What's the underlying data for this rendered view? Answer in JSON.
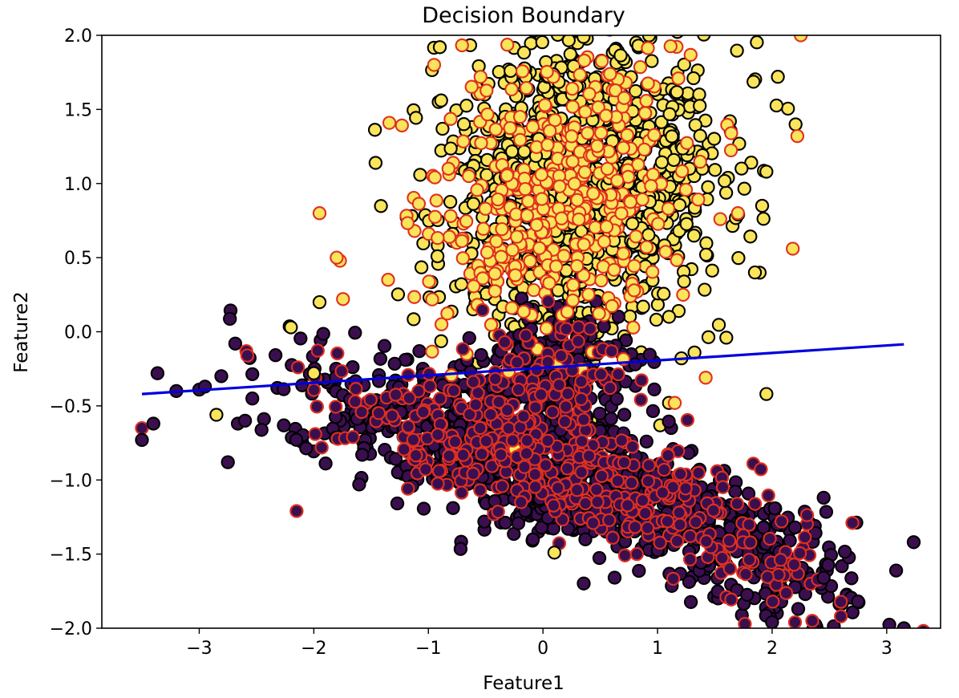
{
  "chart_data": {
    "type": "scatter",
    "title": "Decision Boundary",
    "xlabel": "Feature1",
    "ylabel": "Feature2",
    "xlim": [
      -3.85,
      3.47
    ],
    "ylim": [
      -2.0,
      2.0
    ],
    "x_ticks": [
      -3,
      -2,
      -1,
      0,
      1,
      2,
      3
    ],
    "x_tick_labels": [
      "−3",
      "−2",
      "−1",
      "0",
      "1",
      "2",
      "3"
    ],
    "y_ticks": [
      -2.0,
      -1.5,
      -1.0,
      -0.5,
      0.0,
      0.5,
      1.0,
      1.5,
      2.0
    ],
    "y_tick_labels": [
      "−2.0",
      "−1.5",
      "−1.0",
      "−0.5",
      "0.0",
      "0.5",
      "1.0",
      "1.5",
      "2.0"
    ],
    "grid": false,
    "colors": {
      "class0_fill": "#3b0f4f",
      "class1_fill": "#f9e45b",
      "train_edge": "#000000",
      "test_edge": "#e0301e",
      "boundary": "#0000dd"
    },
    "decision_boundary": {
      "x": [
        -3.5,
        3.15
      ],
      "y": [
        -0.42,
        -0.085
      ]
    },
    "clusters": [
      {
        "name": "class1-train-upper",
        "label": 1,
        "edge": "train",
        "n": 1100,
        "cx": 0.35,
        "cy": 1.05,
        "sx": 0.62,
        "sy": 0.55,
        "rot": 0.45
      },
      {
        "name": "class1-test-upper",
        "label": 1,
        "edge": "test",
        "n": 380,
        "cx": 0.1,
        "cy": 0.95,
        "sx": 0.6,
        "sy": 0.5,
        "rot": 0.4
      },
      {
        "name": "class0-train-lower",
        "label": 0,
        "edge": "train",
        "n": 1000,
        "cx": -0.05,
        "cy": -0.9,
        "sx": 1.05,
        "sy": 0.22,
        "rot": -0.25
      },
      {
        "name": "class0-test-lower",
        "label": 0,
        "edge": "test",
        "n": 340,
        "cx": -0.05,
        "cy": -0.88,
        "sx": 0.95,
        "sy": 0.2,
        "rot": -0.25
      },
      {
        "name": "class0-train-mid",
        "label": 0,
        "edge": "train",
        "n": 200,
        "cx": 0.15,
        "cy": -0.25,
        "sx": 0.35,
        "sy": 0.22,
        "rot": 0.0
      },
      {
        "name": "class0-test-mid",
        "label": 0,
        "edge": "test",
        "n": 80,
        "cx": 0.1,
        "cy": -0.3,
        "sx": 0.32,
        "sy": 0.22,
        "rot": 0.0
      },
      {
        "name": "class0-train-tail",
        "label": 0,
        "edge": "train",
        "n": 140,
        "cx": 1.9,
        "cy": -1.55,
        "sx": 0.38,
        "sy": 0.18,
        "rot": -0.3
      },
      {
        "name": "class0-test-tail",
        "label": 0,
        "edge": "test",
        "n": 45,
        "cx": 1.9,
        "cy": -1.55,
        "sx": 0.35,
        "sy": 0.17,
        "rot": -0.3
      }
    ],
    "fixed_points": [
      {
        "x": -3.5,
        "y": -0.65,
        "label": 0,
        "edge": "test"
      },
      {
        "x": -3.5,
        "y": -0.73,
        "label": 0,
        "edge": "train"
      },
      {
        "x": -3.4,
        "y": -0.62,
        "label": 0,
        "edge": "train"
      },
      {
        "x": -3.2,
        "y": -0.4,
        "label": 0,
        "edge": "train"
      },
      {
        "x": -3.0,
        "y": -0.39,
        "label": 0,
        "edge": "train"
      },
      {
        "x": -2.95,
        "y": -0.37,
        "label": 0,
        "edge": "train"
      },
      {
        "x": -2.15,
        "y": -1.21,
        "label": 0,
        "edge": "test"
      },
      {
        "x": -2.75,
        "y": -0.88,
        "label": 0,
        "edge": "train"
      },
      {
        "x": -2.6,
        "y": -0.6,
        "label": 0,
        "edge": "train"
      },
      {
        "x": -2.2,
        "y": 0.03,
        "label": 1,
        "edge": "train"
      },
      {
        "x": -2.0,
        "y": -0.28,
        "label": 1,
        "edge": "train"
      },
      {
        "x": -2.85,
        "y": -0.56,
        "label": 1,
        "edge": "train"
      },
      {
        "x": -1.95,
        "y": 0.2,
        "label": 1,
        "edge": "train"
      },
      {
        "x": -1.95,
        "y": 0.8,
        "label": 1,
        "edge": "test"
      },
      {
        "x": -1.8,
        "y": 0.5,
        "label": 1,
        "edge": "test"
      },
      {
        "x": 3.15,
        "y": -2.0,
        "label": 0,
        "edge": "train"
      },
      {
        "x": 2.45,
        "y": -1.12,
        "label": 0,
        "edge": "train"
      },
      {
        "x": 2.7,
        "y": -1.29,
        "label": 0,
        "edge": "test"
      },
      {
        "x": 2.6,
        "y": -1.92,
        "label": 0,
        "edge": "test"
      },
      {
        "x": 2.75,
        "y": -1.82,
        "label": 0,
        "edge": "train"
      },
      {
        "x": 2.45,
        "y": -1.66,
        "label": 0,
        "edge": "train"
      },
      {
        "x": 2.35,
        "y": -1.95,
        "label": 0,
        "edge": "test"
      },
      {
        "x": 2.2,
        "y": -1.96,
        "label": 0,
        "edge": "test"
      },
      {
        "x": 2.0,
        "y": -1.96,
        "label": 0,
        "edge": "train"
      },
      {
        "x": 2.2,
        "y": -1.32,
        "label": 0,
        "edge": "train"
      },
      {
        "x": 0.1,
        "y": -1.49,
        "label": 1,
        "edge": "train"
      },
      {
        "x": 0.82,
        "y": -1.5,
        "label": 0,
        "edge": "test"
      },
      {
        "x": 1.95,
        "y": -0.42,
        "label": 1,
        "edge": "train"
      },
      {
        "x": 1.42,
        "y": -0.31,
        "label": 1,
        "edge": "test"
      },
      {
        "x": 1.6,
        "y": -0.04,
        "label": 1,
        "edge": "train"
      },
      {
        "x": 1.1,
        "y": -0.48,
        "label": 1,
        "edge": "train"
      },
      {
        "x": 1.15,
        "y": -0.48,
        "label": 1,
        "edge": "test"
      },
      {
        "x": 2.18,
        "y": 0.56,
        "label": 1,
        "edge": "test"
      },
      {
        "x": 1.85,
        "y": 0.4,
        "label": 1,
        "edge": "train"
      },
      {
        "x": 2.22,
        "y": 1.32,
        "label": 1,
        "edge": "test"
      },
      {
        "x": 2.05,
        "y": 1.72,
        "label": 1,
        "edge": "train"
      },
      {
        "x": 2.25,
        "y": 2.0,
        "label": 1,
        "edge": "test"
      },
      {
        "x": 1.95,
        "y": 1.08,
        "label": 1,
        "edge": "train"
      },
      {
        "x": -0.9,
        "y": 1.92,
        "label": 1,
        "edge": "train"
      },
      {
        "x": -0.95,
        "y": 1.8,
        "label": 1,
        "edge": "test"
      }
    ]
  }
}
